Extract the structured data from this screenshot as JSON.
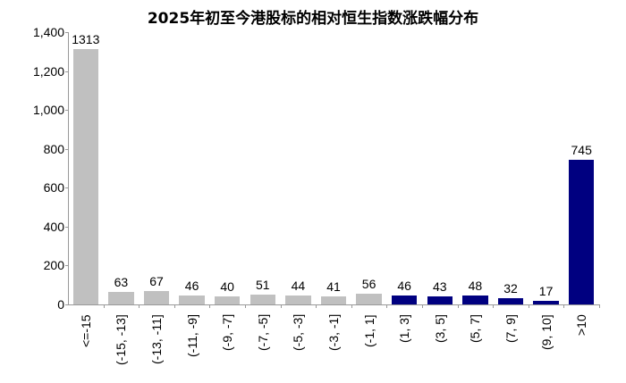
{
  "chart_data": {
    "type": "bar",
    "title": "2025年初至今港股标的相对恒生指数涨跌幅分布",
    "xlabel": "",
    "ylabel": "",
    "ylim": [
      0,
      1400
    ],
    "yticks": [
      "0",
      "200",
      "400",
      "600",
      "800",
      "1,000",
      "1,200",
      "1,400"
    ],
    "grid": false,
    "categories": [
      "<=-15",
      "(-15, -13]",
      "(-13, -11]",
      "(-11, -9]",
      "(-9, -7]",
      "(-7, -5]",
      "(-5, -3]",
      "(-3, -1]",
      "(-1, 1]",
      "(1, 3]",
      "(3, 5]",
      "(5, 7]",
      "(7, 9]",
      "(9, 10]",
      ">10"
    ],
    "values": [
      1313,
      63,
      67,
      46,
      40,
      51,
      44,
      41,
      56,
      46,
      43,
      48,
      32,
      17,
      745
    ],
    "colors": [
      "#c0c0c0",
      "#c0c0c0",
      "#c0c0c0",
      "#c0c0c0",
      "#c0c0c0",
      "#c0c0c0",
      "#c0c0c0",
      "#c0c0c0",
      "#c0c0c0",
      "#000080",
      "#000080",
      "#000080",
      "#000080",
      "#000080",
      "#000080"
    ],
    "data_labels": true
  }
}
